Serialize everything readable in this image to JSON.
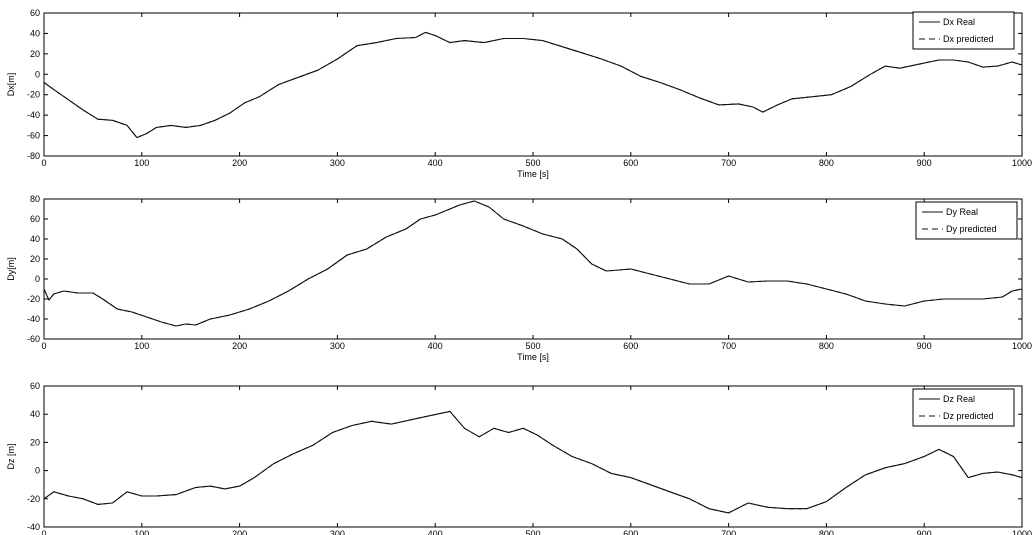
{
  "chart_data": [
    {
      "type": "line",
      "xlabel": "Time [s]",
      "ylabel": "Dx[m]",
      "xlim": [
        0,
        1000
      ],
      "ylim": [
        -80,
        60
      ],
      "xticks": [
        0,
        100,
        200,
        300,
        400,
        500,
        600,
        700,
        800,
        900,
        1000
      ],
      "yticks": [
        -80,
        -60,
        -40,
        -20,
        0,
        20,
        40,
        60
      ],
      "legend_position": "top-right",
      "series": [
        {
          "name": "Dx Real",
          "style": "solid",
          "x": [
            0,
            10,
            25,
            40,
            55,
            70,
            85,
            95,
            105,
            115,
            130,
            145,
            160,
            175,
            190,
            205,
            220,
            240,
            260,
            280,
            300,
            320,
            340,
            360,
            380,
            390,
            400,
            415,
            430,
            450,
            470,
            490,
            510,
            530,
            550,
            570,
            590,
            610,
            630,
            650,
            670,
            690,
            710,
            725,
            735,
            750,
            765,
            785,
            805,
            825,
            845,
            860,
            875,
            895,
            915,
            930,
            945,
            960,
            975,
            990,
            1000
          ],
          "y": [
            -8,
            -15,
            -25,
            -35,
            -44,
            -45,
            -50,
            -62,
            -58,
            -52,
            -50,
            -52,
            -50,
            -45,
            -38,
            -28,
            -22,
            -10,
            -3,
            4,
            15,
            28,
            31,
            35,
            36,
            41,
            38,
            31,
            33,
            31,
            35,
            35,
            33,
            27,
            21,
            15,
            8,
            -2,
            -8,
            -15,
            -23,
            -30,
            -29,
            -32,
            -37,
            -30,
            -24,
            -22,
            -20,
            -12,
            0,
            8,
            6,
            10,
            14,
            14,
            12,
            7,
            8,
            12,
            9
          ]
        },
        {
          "name": "Dx predicted",
          "style": "dashed",
          "x": [
            0,
            10,
            25,
            40,
            55,
            70,
            85,
            95,
            105,
            115,
            130,
            145,
            160,
            175,
            190,
            205,
            220,
            240,
            260,
            280,
            300,
            320,
            340,
            360,
            380,
            390,
            400,
            415,
            430,
            450,
            470,
            490,
            510,
            530,
            550,
            570,
            590,
            610,
            630,
            650,
            670,
            690,
            710,
            725,
            735,
            750,
            765,
            785,
            805,
            825,
            845,
            860,
            875,
            895,
            915,
            930,
            945,
            960,
            975,
            990,
            1000
          ],
          "y": [
            -8,
            -15,
            -25,
            -35,
            -44,
            -45,
            -50,
            -62,
            -58,
            -52,
            -50,
            -52,
            -50,
            -45,
            -38,
            -28,
            -22,
            -10,
            -3,
            4,
            15,
            28,
            31,
            35,
            36,
            41,
            38,
            31,
            33,
            31,
            35,
            35,
            33,
            27,
            21,
            15,
            8,
            -2,
            -8,
            -15,
            -23,
            -30,
            -29,
            -32,
            -37,
            -30,
            -24,
            -22,
            -20,
            -12,
            0,
            8,
            6,
            10,
            14,
            14,
            12,
            7,
            8,
            12,
            9
          ]
        }
      ]
    },
    {
      "type": "line",
      "xlabel": "Time [s]",
      "ylabel": "Dy[m]",
      "xlim": [
        0,
        1000
      ],
      "ylim": [
        -60,
        80
      ],
      "xticks": [
        0,
        100,
        200,
        300,
        400,
        500,
        600,
        700,
        800,
        900,
        1000
      ],
      "yticks": [
        -60,
        -40,
        -20,
        0,
        20,
        40,
        60,
        80
      ],
      "legend_position": "top-right",
      "series": [
        {
          "name": "Dy Real",
          "style": "solid",
          "x": [
            0,
            5,
            10,
            20,
            35,
            50,
            60,
            75,
            90,
            105,
            120,
            135,
            145,
            155,
            170,
            190,
            210,
            230,
            250,
            270,
            290,
            310,
            330,
            350,
            370,
            385,
            400,
            415,
            425,
            440,
            455,
            470,
            490,
            510,
            530,
            545,
            560,
            575,
            600,
            620,
            640,
            660,
            680,
            700,
            720,
            740,
            760,
            780,
            800,
            820,
            840,
            860,
            880,
            900,
            920,
            940,
            960,
            980,
            990,
            1000
          ],
          "y": [
            -10,
            -21,
            -15,
            -12,
            -14,
            -14,
            -20,
            -30,
            -33,
            -38,
            -43,
            -47,
            -45,
            -46,
            -40,
            -36,
            -30,
            -22,
            -12,
            0,
            10,
            24,
            30,
            42,
            50,
            60,
            64,
            70,
            74,
            78,
            72,
            60,
            53,
            45,
            40,
            30,
            15,
            8,
            10,
            5,
            0,
            -5,
            -5,
            3,
            -3,
            -2,
            -2,
            -5,
            -10,
            -15,
            -22,
            -25,
            -27,
            -22,
            -20,
            -20,
            -20,
            -18,
            -12,
            -10
          ]
        },
        {
          "name": "Dy predicted",
          "style": "dashed",
          "x": [
            0,
            5,
            10,
            20,
            35,
            50,
            60,
            75,
            90,
            105,
            120,
            135,
            145,
            155,
            170,
            190,
            210,
            230,
            250,
            270,
            290,
            310,
            330,
            350,
            370,
            385,
            400,
            415,
            425,
            440,
            455,
            470,
            490,
            510,
            530,
            545,
            560,
            575,
            600,
            620,
            640,
            660,
            680,
            700,
            720,
            740,
            760,
            780,
            800,
            820,
            840,
            860,
            880,
            900,
            920,
            940,
            960,
            980,
            990,
            1000
          ],
          "y": [
            -10,
            -21,
            -15,
            -12,
            -14,
            -14,
            -20,
            -30,
            -33,
            -38,
            -43,
            -47,
            -45,
            -46,
            -40,
            -36,
            -30,
            -22,
            -12,
            0,
            10,
            24,
            30,
            42,
            50,
            60,
            64,
            70,
            74,
            78,
            72,
            60,
            53,
            45,
            40,
            30,
            15,
            8,
            10,
            5,
            0,
            -5,
            -5,
            3,
            -3,
            -2,
            -2,
            -5,
            -10,
            -15,
            -22,
            -25,
            -27,
            -22,
            -20,
            -20,
            -20,
            -18,
            -12,
            -10
          ]
        }
      ]
    },
    {
      "type": "line",
      "xlabel": "",
      "ylabel": "Dz [m]",
      "xlim": [
        0,
        1000
      ],
      "ylim": [
        -40,
        60
      ],
      "xticks": [
        0,
        100,
        200,
        300,
        400,
        500,
        600,
        700,
        800,
        900,
        1000
      ],
      "yticks": [
        -40,
        -20,
        0,
        20,
        40,
        60
      ],
      "legend_position": "top-right",
      "series": [
        {
          "name": "Dz Real",
          "style": "solid",
          "x": [
            0,
            10,
            25,
            40,
            55,
            70,
            85,
            100,
            115,
            135,
            155,
            170,
            185,
            200,
            215,
            235,
            255,
            275,
            295,
            315,
            335,
            355,
            375,
            395,
            415,
            430,
            445,
            460,
            475,
            490,
            505,
            520,
            540,
            560,
            580,
            600,
            620,
            640,
            660,
            680,
            700,
            720,
            740,
            760,
            780,
            800,
            820,
            840,
            860,
            880,
            900,
            915,
            930,
            945,
            960,
            975,
            990,
            1000
          ],
          "y": [
            -20,
            -15,
            -18,
            -20,
            -24,
            -23,
            -15,
            -18,
            -18,
            -17,
            -12,
            -11,
            -13,
            -11,
            -5,
            5,
            12,
            18,
            27,
            32,
            35,
            33,
            36,
            39,
            42,
            30,
            24,
            30,
            27,
            30,
            25,
            18,
            10,
            5,
            -2,
            -5,
            -10,
            -15,
            -20,
            -27,
            -30,
            -23,
            -26,
            -27,
            -27,
            -22,
            -12,
            -3,
            2,
            5,
            10,
            15,
            10,
            -5,
            -2,
            -1,
            -3,
            -5
          ]
        },
        {
          "name": "Dz predicted",
          "style": "dashed",
          "x": [
            0,
            10,
            25,
            40,
            55,
            70,
            85,
            100,
            115,
            135,
            155,
            170,
            185,
            200,
            215,
            235,
            255,
            275,
            295,
            315,
            335,
            355,
            375,
            395,
            415,
            430,
            445,
            460,
            475,
            490,
            505,
            520,
            540,
            560,
            580,
            600,
            620,
            640,
            660,
            680,
            700,
            720,
            740,
            760,
            780,
            800,
            820,
            840,
            860,
            880,
            900,
            915,
            930,
            945,
            960,
            975,
            990,
            1000
          ],
          "y": [
            -20,
            -15,
            -18,
            -20,
            -24,
            -23,
            -15,
            -18,
            -18,
            -17,
            -12,
            -11,
            -13,
            -11,
            -5,
            5,
            12,
            18,
            27,
            32,
            35,
            33,
            36,
            39,
            42,
            30,
            24,
            30,
            27,
            30,
            25,
            18,
            10,
            5,
            -2,
            -5,
            -10,
            -15,
            -20,
            -27,
            -30,
            -23,
            -26,
            -27,
            -27,
            -22,
            -12,
            -3,
            2,
            5,
            10,
            15,
            10,
            -5,
            -2,
            -1,
            -3,
            -5
          ]
        }
      ]
    }
  ]
}
